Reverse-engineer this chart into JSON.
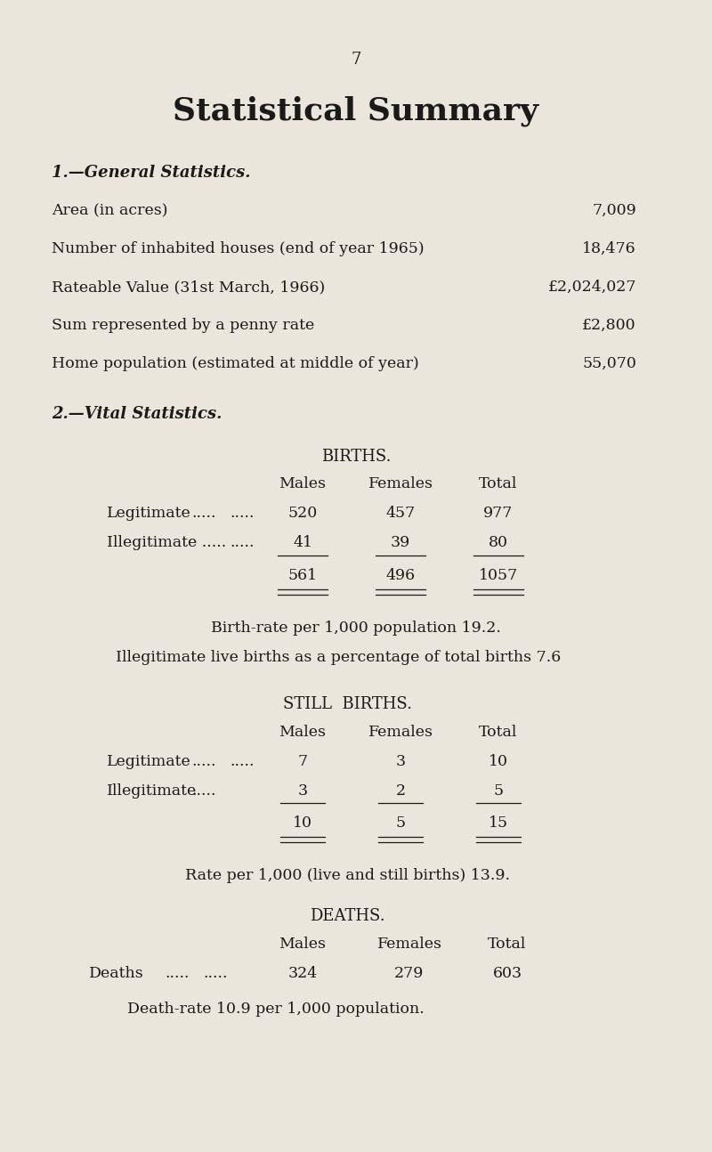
{
  "bg_color": "#eae6db",
  "text_color": "#1a1a1a",
  "page_number": "7",
  "title": "Statistical Summary",
  "section1_heading": "1.—General Statistics.",
  "general_stats": [
    {
      "label": "Area (in acres)",
      "dots": ".....   .....   .....   .....   .....   .....",
      "value": "7,009"
    },
    {
      "label": "Number of inhabited houses (end of year 1965)",
      "dots": "......",
      "value": "18,476"
    },
    {
      "label": "Rateable Value (31st March, 1966)",
      "dots": ".....   .....   .....",
      "value": "£2,024,027"
    },
    {
      "label": "Sum represented by a penny rate",
      "dots": ".....   .....   .....",
      "value": "£2,800"
    },
    {
      "label": "Home population (estimated at middle of year)",
      "dots": "......",
      "value": "55,070"
    }
  ],
  "section2_heading": "2.—Vital Statistics.",
  "births_title": "BIRTHS.",
  "births_col_headers": [
    "Males",
    "Females",
    "Total"
  ],
  "births_rows": [
    {
      "label": "Legitimate",
      "dots1": ".....",
      "dots2": ".....",
      "males": "520",
      "females": "457",
      "total": "977"
    },
    {
      "label": "Illegitimate .....",
      "dots2": ".....",
      "males": "41",
      "females": "39",
      "total": "80"
    }
  ],
  "births_totals": [
    "561",
    "496",
    "1057"
  ],
  "births_note1": "Birth-rate per 1,000 population 19.2.",
  "births_note2": "Illegitimate live births as a percentage of total births 7.6",
  "still_births_title": "STILL  BIRTHS.",
  "still_births_col_headers": [
    "Males",
    "Females",
    "Total"
  ],
  "still_births_rows": [
    {
      "label": "Legitimate",
      "dots1": ".....",
      "dots2": ".....",
      "males": "7",
      "females": "3",
      "total": "10"
    },
    {
      "label": "Illegitimate",
      "dots2": ".....",
      "males": "3",
      "females": "2",
      "total": "5"
    }
  ],
  "still_births_totals": [
    "10",
    "5",
    "15"
  ],
  "still_births_note": "Rate per 1,000 (live and still births) 13.9.",
  "deaths_title": "DEATHS.",
  "deaths_col_headers": [
    "Males",
    "Females",
    "Total"
  ],
  "deaths_rows": [
    {
      "label": "Deaths",
      "dots1": ".....",
      "dots2": ".....",
      "males": "324",
      "females": "279",
      "total": "603"
    }
  ],
  "deaths_note": "Death-rate 10.9 per 1,000 population."
}
